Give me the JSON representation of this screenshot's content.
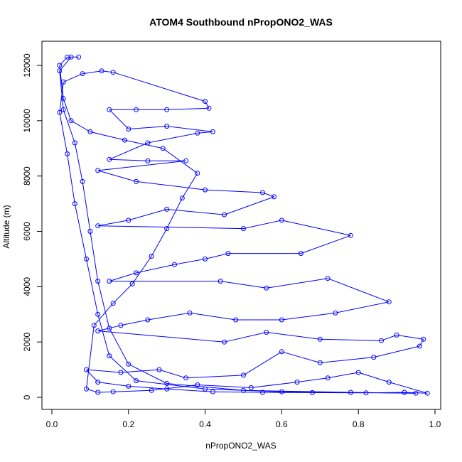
{
  "chart_data": {
    "type": "scatter",
    "title": "ATOM4 Southbound nPropONO2_WAS",
    "xlabel": "nPropONO2_WAS",
    "ylabel": "Altitude (m)",
    "xlim": [
      0.0,
      1.0
    ],
    "ylim": [
      0,
      12000
    ],
    "x_ticks": [
      "0.0",
      "0.2",
      "0.4",
      "0.6",
      "0.8",
      "1.0"
    ],
    "y_ticks": [
      "0",
      "2000",
      "4000",
      "6000",
      "8000",
      "10000",
      "12000"
    ],
    "grid": false,
    "legend": "none",
    "marker": "open-circle",
    "connected": true,
    "colors": {
      "series": "#0000ff",
      "axes": "#000000",
      "background": "#ffffff"
    },
    "series": [
      {
        "points": [
          [
            0.05,
            12300
          ],
          [
            0.02,
            11800
          ],
          [
            0.03,
            10400
          ],
          [
            0.06,
            9200
          ],
          [
            0.08,
            7800
          ],
          [
            0.1,
            6000
          ],
          [
            0.12,
            4200
          ],
          [
            0.15,
            2500
          ],
          [
            0.2,
            1200
          ],
          [
            0.3,
            500
          ],
          [
            0.5,
            250
          ],
          [
            0.78,
            180
          ],
          [
            0.95,
            150
          ],
          [
            0.6,
            200
          ],
          [
            0.4,
            300
          ],
          [
            0.22,
            600
          ],
          [
            0.15,
            1500
          ],
          [
            0.12,
            3000
          ],
          [
            0.09,
            5000
          ],
          [
            0.06,
            7000
          ],
          [
            0.04,
            8800
          ],
          [
            0.02,
            10300
          ],
          [
            0.03,
            11400
          ],
          [
            0.08,
            11700
          ],
          [
            0.13,
            11800
          ],
          [
            0.16,
            11750
          ],
          [
            0.4,
            10700
          ],
          [
            0.41,
            10450
          ],
          [
            0.3,
            10400
          ],
          [
            0.22,
            10400
          ],
          [
            0.15,
            10400
          ],
          [
            0.2,
            9700
          ],
          [
            0.3,
            9800
          ],
          [
            0.42,
            9600
          ],
          [
            0.38,
            9550
          ],
          [
            0.25,
            9200
          ],
          [
            0.15,
            8600
          ],
          [
            0.25,
            8550
          ],
          [
            0.35,
            8550
          ],
          [
            0.12,
            8200
          ],
          [
            0.22,
            7800
          ],
          [
            0.4,
            7500
          ],
          [
            0.55,
            7400
          ],
          [
            0.58,
            7250
          ],
          [
            0.45,
            6600
          ],
          [
            0.3,
            6800
          ],
          [
            0.2,
            6400
          ],
          [
            0.12,
            6200
          ],
          [
            0.5,
            6100
          ],
          [
            0.6,
            6400
          ],
          [
            0.78,
            5850
          ],
          [
            0.65,
            5200
          ],
          [
            0.46,
            5200
          ],
          [
            0.4,
            5000
          ],
          [
            0.32,
            4800
          ],
          [
            0.22,
            4500
          ],
          [
            0.15,
            4200
          ],
          [
            0.44,
            4200
          ],
          [
            0.56,
            3950
          ],
          [
            0.72,
            4300
          ],
          [
            0.88,
            3450
          ],
          [
            0.74,
            3050
          ],
          [
            0.6,
            2800
          ],
          [
            0.48,
            2800
          ],
          [
            0.36,
            3050
          ],
          [
            0.25,
            2800
          ],
          [
            0.18,
            2600
          ],
          [
            0.12,
            2400
          ],
          [
            0.45,
            2000
          ],
          [
            0.56,
            2350
          ],
          [
            0.7,
            2100
          ],
          [
            0.86,
            2050
          ],
          [
            0.9,
            2250
          ],
          [
            0.97,
            2100
          ],
          [
            0.96,
            1850
          ],
          [
            0.84,
            1450
          ],
          [
            0.7,
            1250
          ],
          [
            0.6,
            1650
          ],
          [
            0.5,
            800
          ],
          [
            0.35,
            700
          ],
          [
            0.28,
            1000
          ],
          [
            0.18,
            900
          ],
          [
            0.09,
            1000
          ],
          [
            0.12,
            550
          ],
          [
            0.2,
            400
          ],
          [
            0.3,
            300
          ],
          [
            0.42,
            200
          ],
          [
            0.55,
            180
          ],
          [
            0.68,
            170
          ],
          [
            0.82,
            160
          ],
          [
            0.92,
            180
          ],
          [
            0.98,
            150
          ],
          [
            0.88,
            550
          ],
          [
            0.8,
            900
          ],
          [
            0.72,
            700
          ],
          [
            0.64,
            550
          ],
          [
            0.52,
            350
          ],
          [
            0.38,
            450
          ],
          [
            0.26,
            250
          ],
          [
            0.16,
            200
          ],
          [
            0.12,
            180
          ],
          [
            0.09,
            300
          ],
          [
            0.11,
            2600
          ],
          [
            0.16,
            3400
          ],
          [
            0.21,
            4100
          ],
          [
            0.26,
            5100
          ],
          [
            0.3,
            6100
          ],
          [
            0.34,
            7200
          ],
          [
            0.38,
            8100
          ],
          [
            0.29,
            9000
          ],
          [
            0.19,
            9300
          ],
          [
            0.1,
            9600
          ],
          [
            0.05,
            10000
          ],
          [
            0.03,
            10800
          ],
          [
            0.02,
            12000
          ],
          [
            0.04,
            12300
          ],
          [
            0.07,
            12300
          ]
        ]
      }
    ]
  }
}
